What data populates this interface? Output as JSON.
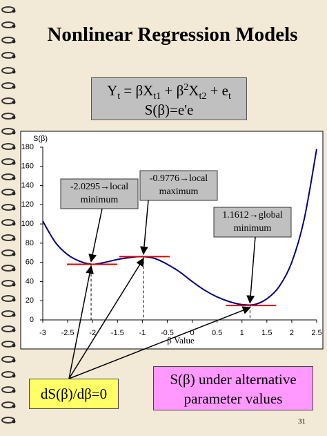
{
  "title": "Nonlinear Regression Models",
  "equation": {
    "line1": [
      "Y",
      "t",
      " = βX",
      "t1",
      " + β",
      "2",
      "X",
      "t2",
      " + e",
      "t"
    ],
    "line2": "S(β)=e'e"
  },
  "chart_data": {
    "type": "line",
    "y_label": "S(β)",
    "x_label": "β Value",
    "x": [
      -3,
      -2.75,
      -2.5,
      -2.25,
      -2,
      -1.75,
      -1.5,
      -1.25,
      -1,
      -0.75,
      -0.5,
      -0.25,
      0,
      0.25,
      0.5,
      0.75,
      1,
      1.25,
      1.5,
      1.75,
      2,
      2.25,
      2.5
    ],
    "series": [
      {
        "name": "S(β)",
        "color": "#000080",
        "values": [
          103,
          81,
          68,
          61,
          58,
          60,
          63,
          65,
          66,
          64,
          58,
          50,
          40,
          31,
          24,
          19,
          16,
          16,
          22,
          35,
          60,
          105,
          178
        ]
      }
    ],
    "xlim": [
      -3,
      2.5
    ],
    "xticks": [
      -3,
      -2.5,
      -2,
      -1.5,
      -1,
      -0.5,
      0,
      0.5,
      1,
      1.5,
      2,
      2.5
    ],
    "ylim": [
      0,
      180
    ],
    "yticks": [
      0,
      20,
      40,
      60,
      80,
      100,
      120,
      140,
      160,
      180
    ],
    "critical_points": [
      {
        "x": -2.0295,
        "y": 58,
        "label": [
          "-2.0295→local",
          "minimum"
        ]
      },
      {
        "x": -0.9776,
        "y": 66,
        "label": [
          "-0.9776→local",
          "maximum"
        ]
      },
      {
        "x": 1.1612,
        "y": 15,
        "label": [
          "1.1612→global",
          "minimum"
        ]
      }
    ],
    "tangent_color": "#e00000"
  },
  "condition_note": "dS(β)/dβ=0",
  "caption": [
    "S(β) under alternative",
    "parameter values"
  ],
  "page_number": "31"
}
